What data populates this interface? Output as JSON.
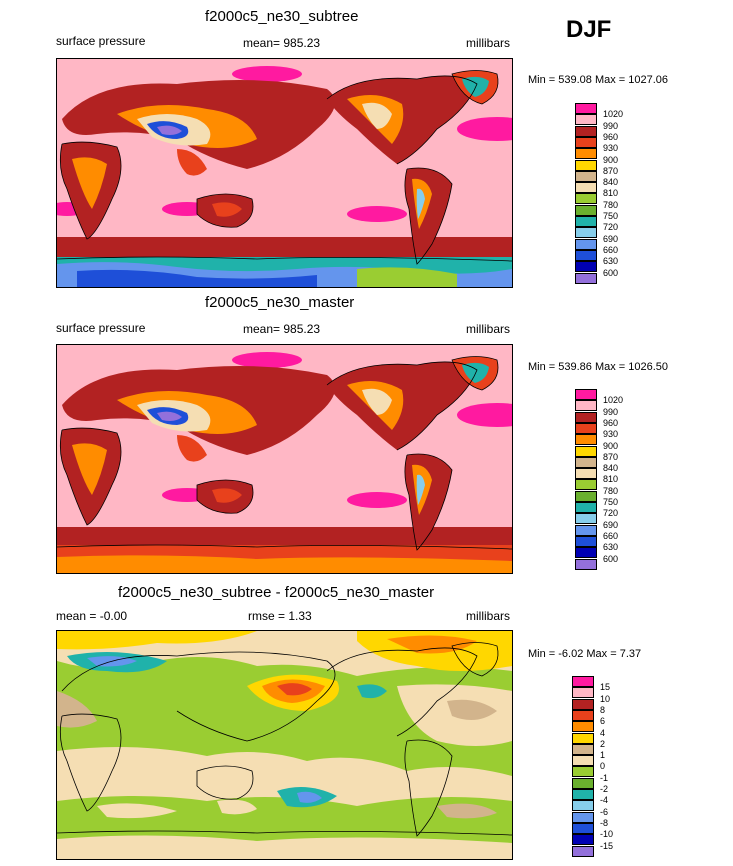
{
  "season": "DJF",
  "panels": [
    {
      "title": "f2000c5_ne30_subtree",
      "left": "surface pressure",
      "center": "mean= 985.23",
      "right": "millibars",
      "minmax": "Min = 539.08 Max = 1027.06"
    },
    {
      "title": "f2000c5_ne30_master",
      "left": "surface pressure",
      "center": "mean= 985.23",
      "right": "millibars",
      "minmax": "Min = 539.86 Max = 1026.50"
    },
    {
      "title": "f2000c5_ne30_subtree - f2000c5_ne30_master",
      "left": "mean =  -0.00",
      "center": "rmse =   1.33",
      "right": "millibars",
      "minmax": "Min =  -6.02 Max =   7.37"
    }
  ],
  "legend_abs": {
    "labels": [
      "1020",
      "990",
      "960",
      "930",
      "900",
      "870",
      "840",
      "810",
      "780",
      "750",
      "720",
      "690",
      "660",
      "630",
      "600"
    ],
    "colors": [
      "#ff1aa0",
      "#ffb7c5",
      "#b22222",
      "#e8411c",
      "#ff8c00",
      "#ffd700",
      "#d2b48c",
      "#f5deb3",
      "#9acd32",
      "#6ab02e",
      "#20b2aa",
      "#87ceeb",
      "#6495ed",
      "#1e4fd8",
      "#0000b3",
      "#9370db"
    ]
  },
  "legend_diff": {
    "labels": [
      "15",
      "10",
      "8",
      "6",
      "4",
      "2",
      "1",
      "0",
      "-1",
      "-2",
      "-4",
      "-6",
      "-8",
      "-10",
      "-15"
    ],
    "colors": [
      "#ff1aa0",
      "#ffb7c5",
      "#b22222",
      "#e8411c",
      "#ff8c00",
      "#ffd700",
      "#d2b48c",
      "#f5deb3",
      "#9acd32",
      "#6ab02e",
      "#20b2aa",
      "#87ceeb",
      "#6495ed",
      "#1e4fd8",
      "#0000b3",
      "#9370db"
    ]
  }
}
